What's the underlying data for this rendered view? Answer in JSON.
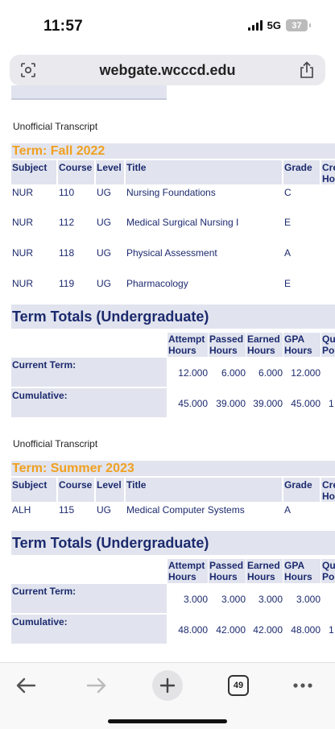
{
  "status": {
    "time": "11:57",
    "network": "5G",
    "battery": "37"
  },
  "browser": {
    "url": "webgate.wcccd.edu",
    "tab_count": "49"
  },
  "transcript": {
    "label": "Unofficial Transcript",
    "columns": [
      "Subject",
      "Course",
      "Level",
      "Title",
      "Grade",
      "Cre",
      "Ho"
    ],
    "totals_title": "Term Totals (Undergraduate)",
    "totals_columns": [
      {
        "line1": "Attempt",
        "line2": "Hours"
      },
      {
        "line1": "Passed",
        "line2": "Hours"
      },
      {
        "line1": "Earned",
        "line2": "Hours"
      },
      {
        "line1": "GPA",
        "line2": "Hours"
      },
      {
        "line1": "Qu",
        "line2": "Po"
      }
    ],
    "row_labels": {
      "current": "Current Term:",
      "cumulative": "Cumulative:"
    },
    "terms": [
      {
        "title": "Term: Fall 2022",
        "courses": [
          {
            "subject": "NUR",
            "course": "110",
            "level": "UG",
            "title": "Nursing Foundations",
            "grade": "C"
          },
          {
            "subject": "NUR",
            "course": "112",
            "level": "UG",
            "title": "Medical Surgical Nursing I",
            "grade": "E"
          },
          {
            "subject": "NUR",
            "course": "118",
            "level": "UG",
            "title": "Physical Assessment",
            "grade": "A"
          },
          {
            "subject": "NUR",
            "course": "119",
            "level": "UG",
            "title": "Pharmacology",
            "grade": "E"
          }
        ],
        "current": [
          "12.000",
          "6.000",
          "6.000",
          "12.000",
          ""
        ],
        "cumulative": [
          "45.000",
          "39.000",
          "39.000",
          "45.000",
          "1"
        ]
      },
      {
        "title": "Term: Summer 2023",
        "courses": [
          {
            "subject": "ALH",
            "course": "115",
            "level": "UG",
            "title": "Medical Computer Systems",
            "grade": "A"
          }
        ],
        "current": [
          "3.000",
          "3.000",
          "3.000",
          "3.000",
          ""
        ],
        "cumulative": [
          "48.000",
          "42.000",
          "42.000",
          "48.000",
          "1"
        ]
      }
    ]
  },
  "toolbar": {
    "back": "back-arrow-icon",
    "forward": "forward-arrow-icon",
    "new_tab": "plus-icon",
    "menu": "more-icon"
  }
}
